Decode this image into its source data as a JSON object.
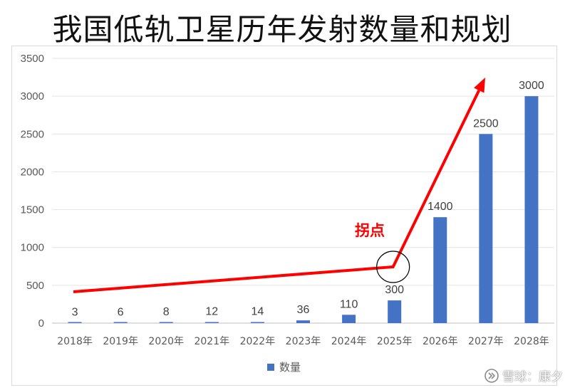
{
  "title": "我国低轨卫星历年发射数量和规划",
  "chart_data": {
    "type": "bar",
    "categories": [
      "2018年",
      "2019年",
      "2020年",
      "2021年",
      "2022年",
      "2023年",
      "2024年",
      "2025年",
      "2026年",
      "2027年",
      "2028年"
    ],
    "series": [
      {
        "name": "数量",
        "values": [
          3,
          6,
          8,
          12,
          14,
          36,
          110,
          300,
          1400,
          2500,
          3000
        ]
      }
    ],
    "data_labels": [
      "3",
      "6",
      "8",
      "12",
      "14",
      "36",
      "110",
      "300",
      "1400",
      "2500",
      "3000"
    ],
    "y_ticks": [
      0,
      500,
      1000,
      1500,
      2000,
      2500,
      3000,
      3500
    ],
    "ylim": [
      0,
      3500
    ],
    "grid": true,
    "legend_position": "bottom",
    "bar_color": "#4472c4",
    "annotation": {
      "text": "拐点",
      "color": "#ff0000"
    }
  },
  "watermark": "雪球：康夕"
}
